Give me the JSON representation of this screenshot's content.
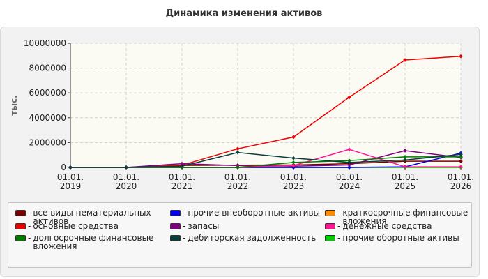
{
  "chart_data": {
    "type": "line",
    "title": "Динамика изменения активов",
    "ylabel": "тыс.",
    "xlabel": "",
    "ylim": [
      0,
      10000000
    ],
    "yticks": [
      0,
      2000000,
      4000000,
      6000000,
      8000000,
      10000000
    ],
    "categories": [
      "01.01.\n2019",
      "01.01.\n2020",
      "01.01.\n2021",
      "01.01.\n2022",
      "01.01.\n2023",
      "01.01.\n2024",
      "01.01.\n2025",
      "01.01.\n2026"
    ],
    "grid": true,
    "legend_position": "bottom",
    "series": [
      {
        "name": "все виды нематериальных активов",
        "color": "#7a0000",
        "values": [
          0,
          0,
          160000,
          180000,
          200000,
          300000,
          500000,
          500000
        ]
      },
      {
        "name": "прочие внеоборотные активы",
        "color": "#0000ee",
        "values": [
          0,
          0,
          0,
          0,
          0,
          0,
          50000,
          1150000
        ]
      },
      {
        "name": "краткосрочные финансовые вложения",
        "color": "#ff8c00",
        "values": [
          0,
          0,
          0,
          0,
          0,
          0,
          0,
          0
        ]
      },
      {
        "name": "основные средства",
        "color": "#ee0000",
        "values": [
          0,
          0,
          180000,
          1500000,
          2450000,
          5650000,
          8650000,
          8950000
        ]
      },
      {
        "name": "запасы",
        "color": "#800080",
        "values": [
          0,
          0,
          300000,
          150000,
          100000,
          200000,
          1350000,
          800000
        ]
      },
      {
        "name": "денежные средства",
        "color": "#ff1493",
        "values": [
          0,
          0,
          0,
          0,
          150000,
          1450000,
          50000,
          50000
        ]
      },
      {
        "name": "долгосрочные финансовые вложения",
        "color": "#007a00",
        "values": [
          0,
          0,
          0,
          0,
          400000,
          550000,
          850000,
          850000
        ]
      },
      {
        "name": "дебиторская задолженность",
        "color": "#0b3d3d",
        "values": [
          0,
          0,
          100000,
          1200000,
          750000,
          400000,
          600000,
          1050000
        ]
      },
      {
        "name": "прочие оборотные активы",
        "color": "#00cc00",
        "values": [
          0,
          0,
          0,
          0,
          0,
          0,
          0,
          0
        ]
      }
    ]
  }
}
